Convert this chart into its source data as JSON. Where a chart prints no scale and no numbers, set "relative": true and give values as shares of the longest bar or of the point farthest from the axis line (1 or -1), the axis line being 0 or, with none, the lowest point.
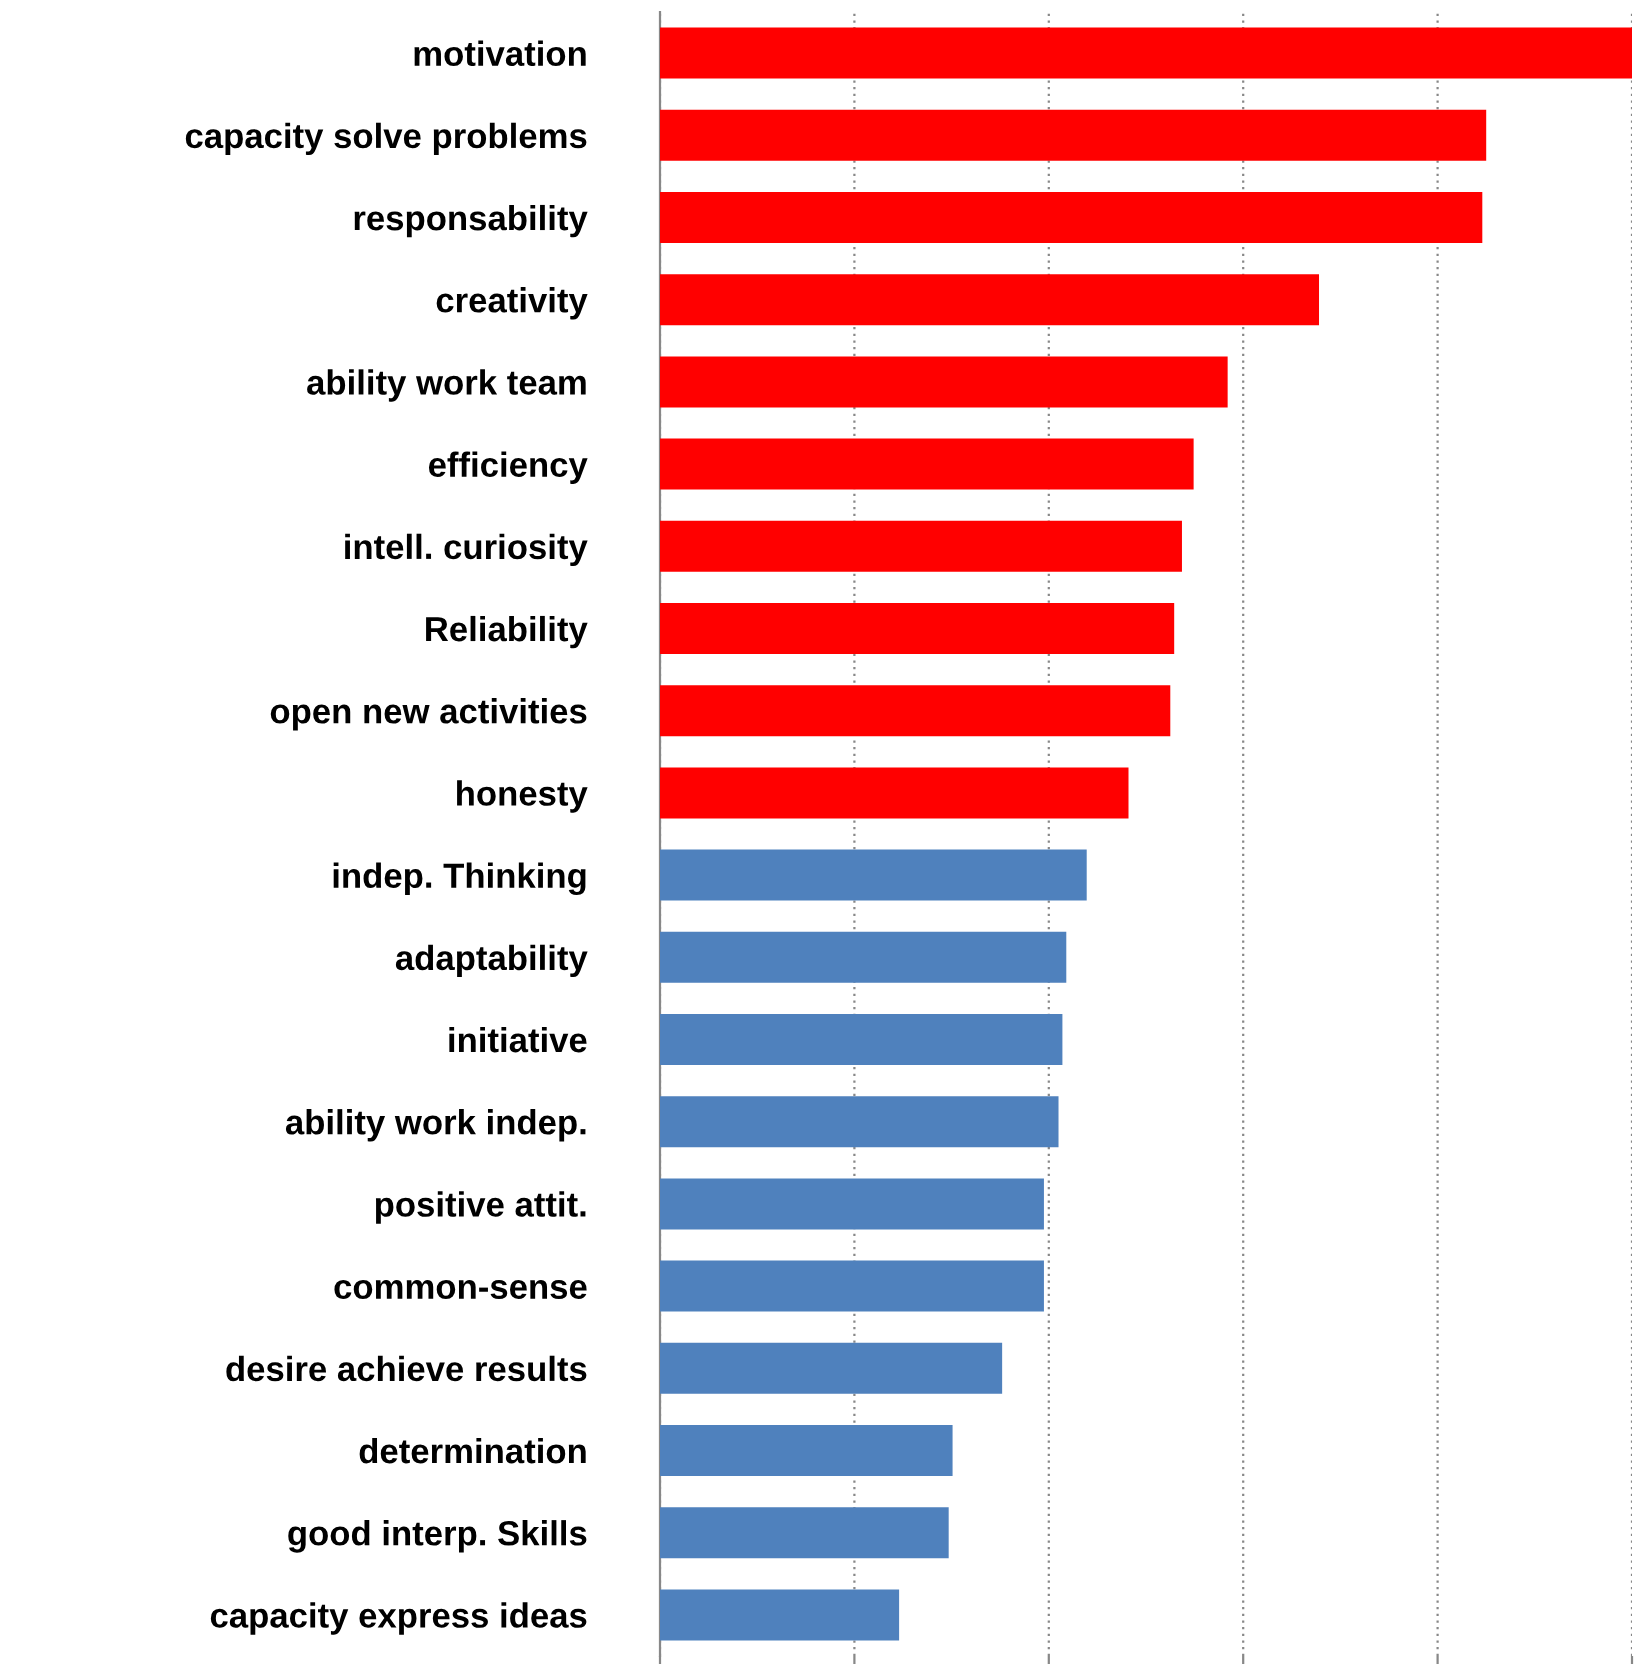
{
  "chart_data": {
    "type": "bar",
    "orientation": "horizontal",
    "relative": true,
    "grid": "x",
    "categories": [
      "motivation",
      "capacity solve problems",
      "responsability",
      "creativity",
      "ability work team",
      "efficiency",
      "intell. curiosity",
      "Reliability",
      "open new activities",
      "honesty",
      "indep. Thinking",
      "adaptability",
      "initiative",
      "ability work indep.",
      "positive attit.",
      "common-sense",
      "desire achieve results",
      "determination",
      "good interp. Skills",
      "capacity express ideas"
    ],
    "values": [
      1,
      0.85,
      0.846,
      0.678,
      0.584,
      0.549,
      0.537,
      0.529,
      0.525,
      0.482,
      0.439,
      0.418,
      0.414,
      0.41,
      0.395,
      0.395,
      0.352,
      0.301,
      0.297,
      0.246
    ],
    "colors": [
      "#ff0000",
      "#ff0000",
      "#ff0000",
      "#ff0000",
      "#ff0000",
      "#ff0000",
      "#ff0000",
      "#ff0000",
      "#ff0000",
      "#ff0000",
      "#4f81bd",
      "#4f81bd",
      "#4f81bd",
      "#4f81bd",
      "#4f81bd",
      "#4f81bd",
      "#4f81bd",
      "#4f81bd",
      "#4f81bd",
      "#4f81bd"
    ]
  }
}
